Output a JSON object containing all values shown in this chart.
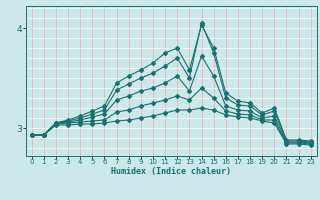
{
  "xlabel": "Humidex (Indice chaleur)",
  "bg_color": "#cce8e8",
  "line_color": "#1a7070",
  "vgrid_color": "#e8aaaa",
  "hgrid_color": "#ffffff",
  "x_ticks": [
    0,
    1,
    2,
    3,
    4,
    5,
    6,
    7,
    8,
    9,
    10,
    11,
    12,
    13,
    14,
    15,
    16,
    17,
    18,
    19,
    20,
    21,
    22,
    23
  ],
  "y_ticks": [
    3,
    4
  ],
  "ylim": [
    2.72,
    4.22
  ],
  "xlim": [
    -0.5,
    23.5
  ],
  "series": [
    {
      "x": [
        0,
        1,
        2,
        3,
        4,
        5,
        6,
        7,
        8,
        9,
        10,
        11,
        12,
        13,
        14,
        15,
        16,
        17,
        18,
        19,
        20,
        21,
        22,
        23
      ],
      "y": [
        2.93,
        2.93,
        3.05,
        3.08,
        3.12,
        3.17,
        3.22,
        3.45,
        3.52,
        3.58,
        3.65,
        3.75,
        3.8,
        3.58,
        4.03,
        3.8,
        3.35,
        3.27,
        3.25,
        3.15,
        3.2,
        2.88,
        2.88,
        2.87
      ]
    },
    {
      "x": [
        0,
        1,
        2,
        3,
        4,
        5,
        6,
        7,
        8,
        9,
        10,
        11,
        12,
        13,
        14,
        15,
        16,
        17,
        18,
        19,
        20,
        21,
        22,
        23
      ],
      "y": [
        2.93,
        2.93,
        3.05,
        3.07,
        3.1,
        3.14,
        3.18,
        3.38,
        3.44,
        3.5,
        3.55,
        3.62,
        3.7,
        3.5,
        4.05,
        3.75,
        3.3,
        3.23,
        3.22,
        3.13,
        3.17,
        2.87,
        2.87,
        2.86
      ]
    },
    {
      "x": [
        0,
        1,
        2,
        3,
        4,
        5,
        6,
        7,
        8,
        9,
        10,
        11,
        12,
        13,
        14,
        15,
        16,
        17,
        18,
        19,
        20,
        21,
        22,
        23
      ],
      "y": [
        2.93,
        2.93,
        3.05,
        3.06,
        3.08,
        3.11,
        3.14,
        3.28,
        3.32,
        3.37,
        3.4,
        3.45,
        3.52,
        3.37,
        3.72,
        3.52,
        3.22,
        3.18,
        3.17,
        3.1,
        3.12,
        2.86,
        2.86,
        2.85
      ]
    },
    {
      "x": [
        0,
        1,
        2,
        3,
        4,
        5,
        6,
        7,
        8,
        9,
        10,
        11,
        12,
        13,
        14,
        15,
        16,
        17,
        18,
        19,
        20,
        21,
        22,
        23
      ],
      "y": [
        2.93,
        2.93,
        3.04,
        3.05,
        3.06,
        3.07,
        3.08,
        3.16,
        3.18,
        3.22,
        3.25,
        3.28,
        3.32,
        3.28,
        3.4,
        3.3,
        3.17,
        3.14,
        3.13,
        3.08,
        3.08,
        2.85,
        2.85,
        2.84
      ]
    },
    {
      "x": [
        0,
        1,
        2,
        3,
        4,
        5,
        6,
        7,
        8,
        9,
        10,
        11,
        12,
        13,
        14,
        15,
        16,
        17,
        18,
        19,
        20,
        21,
        22,
        23
      ],
      "y": [
        2.93,
        2.93,
        3.03,
        3.03,
        3.04,
        3.04,
        3.05,
        3.07,
        3.08,
        3.1,
        3.12,
        3.15,
        3.18,
        3.18,
        3.2,
        3.18,
        3.13,
        3.11,
        3.1,
        3.07,
        3.05,
        2.84,
        2.84,
        2.83
      ]
    }
  ]
}
